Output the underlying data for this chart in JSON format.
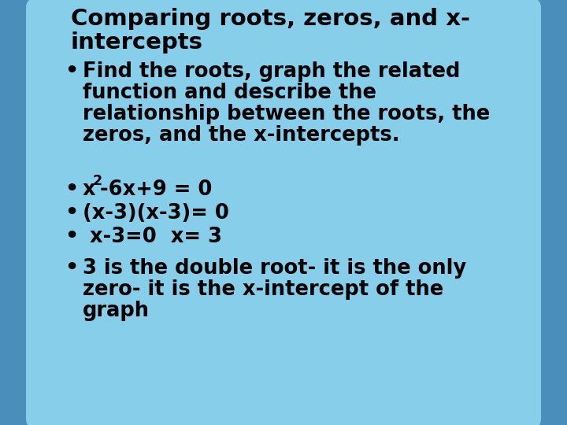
{
  "title_line1": "Comparing roots, zeros, and x-",
  "title_line2": "intercepts",
  "bullet1_line1": "Find the roots, graph the related",
  "bullet1_line2": "function and describe the",
  "bullet1_line3": "relationship between the roots, the",
  "bullet1_line4": "zeros, and the x-intercepts.",
  "bullet3": "(x-3)(x-3)= 0",
  "bullet4": " x-3=0  x= 3",
  "bullet5_line1": "3 is the double root- it is the only",
  "bullet5_line2": "zero- it is the x-intercept of the",
  "bullet5_line3": "graph",
  "bg_outer": "#4a8fbc",
  "bg_inner": "#87ceeb",
  "text_color": "#000000",
  "title_fontsize": 21,
  "body_fontsize": 18.5
}
